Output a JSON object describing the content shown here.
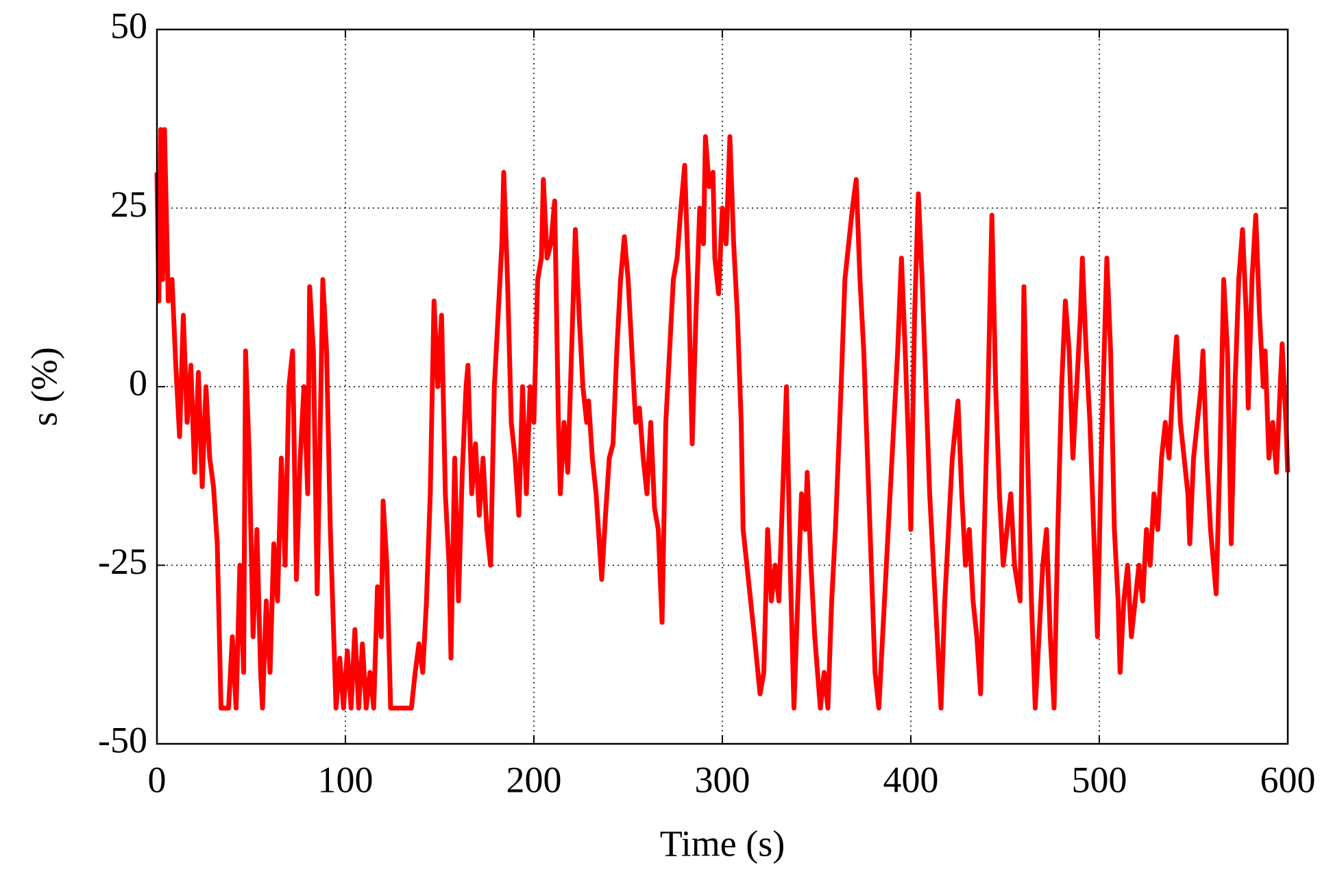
{
  "chart_data": {
    "type": "line",
    "xlabel": "Time  (s)",
    "ylabel": "s (%)",
    "xlim": [
      0,
      600
    ],
    "xticks": [
      0,
      100,
      200,
      300,
      400,
      500,
      600
    ],
    "ylim": [
      -50,
      50
    ],
    "yticks": [
      -50,
      -25,
      0,
      25,
      50
    ],
    "grid": true,
    "x": [
      0,
      1,
      2,
      3,
      4,
      6,
      8,
      10,
      12,
      14,
      16,
      18,
      20,
      22,
      24,
      26,
      28,
      30,
      32,
      34,
      38,
      40,
      42,
      44,
      46,
      47,
      49,
      51,
      53,
      55,
      56,
      58,
      60,
      62,
      64,
      66,
      68,
      70,
      72,
      74,
      76,
      78,
      80,
      81,
      83,
      85,
      87,
      88,
      90,
      92,
      95,
      97,
      99,
      101,
      103,
      105,
      107,
      109,
      111,
      113,
      115,
      117,
      119,
      120,
      122,
      124,
      130,
      135,
      137,
      139,
      141,
      143,
      145,
      147,
      149,
      151,
      153,
      155,
      156,
      158,
      160,
      162,
      164,
      165,
      167,
      169,
      171,
      173,
      175,
      177,
      179,
      181,
      183,
      184,
      186,
      188,
      190,
      192,
      194,
      196,
      198,
      200,
      202,
      204,
      205,
      207,
      209,
      211,
      213,
      214,
      216,
      218,
      220,
      222,
      224,
      226,
      228,
      229,
      231,
      233,
      236,
      238,
      240,
      242,
      244,
      246,
      248,
      250,
      252,
      254,
      256,
      258,
      260,
      262,
      264,
      266,
      268,
      270,
      272,
      274,
      276,
      278,
      280,
      282,
      284,
      286,
      288,
      290,
      291,
      293,
      295,
      296,
      298,
      300,
      302,
      304,
      306,
      308,
      310,
      311,
      313,
      315,
      317,
      320,
      322,
      324,
      326,
      328,
      330,
      332,
      334,
      336,
      338,
      340,
      342,
      344,
      345,
      347,
      349,
      352,
      354,
      356,
      358,
      360,
      363,
      365,
      367,
      369,
      371,
      373,
      375,
      377,
      379,
      381,
      383,
      385,
      387,
      389,
      391,
      393,
      395,
      397,
      399,
      400,
      402,
      404,
      406,
      408,
      410,
      412,
      414,
      416,
      418,
      420,
      422,
      425,
      427,
      429,
      431,
      433,
      435,
      437,
      439,
      441,
      443,
      445,
      447,
      449,
      451,
      453,
      455,
      458,
      460,
      462,
      464,
      466,
      468,
      470,
      472,
      474,
      476,
      478,
      480,
      482,
      484,
      486,
      488,
      490,
      491,
      493,
      495,
      497,
      499,
      501,
      504,
      506,
      508,
      510,
      511,
      513,
      515,
      517,
      519,
      521,
      523,
      525,
      527,
      529,
      531,
      533,
      535,
      537,
      539,
      541,
      543,
      545,
      547,
      548,
      550,
      552,
      554,
      555,
      557,
      559,
      562,
      564,
      566,
      568,
      570,
      572,
      574,
      576,
      578,
      579,
      581,
      583,
      585,
      587,
      588,
      590,
      592,
      594,
      596,
      597,
      599,
      600
    ],
    "series": [
      {
        "color": "#ff0000",
        "values": [
          30,
          12,
          36,
          15,
          36,
          12,
          15,
          3,
          -7,
          10,
          -5,
          3,
          -12,
          2,
          -14,
          0,
          -10,
          -14,
          -22,
          -45,
          -45,
          -35,
          -45,
          -25,
          -40,
          5,
          -10,
          -35,
          -20,
          -40,
          -45,
          -30,
          -40,
          -22,
          -30,
          -10,
          -25,
          0,
          5,
          -27,
          -10,
          0,
          -15,
          14,
          5,
          -29,
          0,
          15,
          5,
          -20,
          -45,
          -38,
          -45,
          -37,
          -45,
          -34,
          -45,
          -36,
          -45,
          -40,
          -45,
          -28,
          -35,
          -16,
          -25,
          -45,
          -45,
          -45,
          -40,
          -36,
          -40,
          -30,
          -15,
          12,
          0,
          10,
          -15,
          -25,
          -38,
          -10,
          -30,
          -12,
          0,
          3,
          -15,
          -8,
          -18,
          -10,
          -20,
          -25,
          0,
          10,
          20,
          30,
          15,
          -5,
          -10,
          -18,
          0,
          -15,
          0,
          -5,
          15,
          18,
          29,
          18,
          20,
          26,
          -5,
          -15,
          -5,
          -12,
          5,
          22,
          10,
          0,
          -5,
          -2,
          -10,
          -15,
          -27,
          -18,
          -10,
          -8,
          5,
          15,
          21,
          15,
          5,
          -5,
          -3,
          -10,
          -15,
          -5,
          -17,
          -20,
          -33,
          -5,
          5,
          15,
          18,
          25,
          31,
          15,
          -8,
          10,
          25,
          20,
          35,
          28,
          30,
          18,
          13,
          25,
          20,
          35,
          20,
          10,
          -5,
          -20,
          -25,
          -30,
          -35,
          -43,
          -40,
          -20,
          -30,
          -25,
          -30,
          -15,
          0,
          -25,
          -45,
          -30,
          -15,
          -20,
          -12,
          -25,
          -35,
          -45,
          -40,
          -45,
          -30,
          -20,
          0,
          15,
          20,
          25,
          29,
          15,
          5,
          -10,
          -25,
          -40,
          -45,
          -35,
          -25,
          -15,
          -5,
          5,
          18,
          5,
          -10,
          -20,
          10,
          27,
          15,
          0,
          -15,
          -25,
          -35,
          -45,
          -30,
          -20,
          -10,
          -2,
          -15,
          -25,
          -20,
          -30,
          -35,
          -43,
          -20,
          0,
          24,
          0,
          -15,
          -25,
          -20,
          -15,
          -25,
          -30,
          14,
          -10,
          -30,
          -45,
          -35,
          -25,
          -20,
          -35,
          -45,
          -20,
          0,
          12,
          5,
          -10,
          0,
          10,
          18,
          5,
          -5,
          -20,
          -35,
          -10,
          18,
          5,
          -20,
          -30,
          -40,
          -30,
          -25,
          -35,
          -30,
          -25,
          -30,
          -20,
          -25,
          -15,
          -20,
          -10,
          -5,
          -10,
          0,
          7,
          -5,
          -10,
          -15,
          -22,
          -10,
          -5,
          0,
          5,
          -10,
          -20,
          -29,
          -10,
          15,
          5,
          -22,
          0,
          15,
          22,
          10,
          -3,
          15,
          24,
          10,
          0,
          5,
          -10,
          -5,
          -12,
          0,
          6,
          -5,
          -12
        ]
      }
    ]
  }
}
